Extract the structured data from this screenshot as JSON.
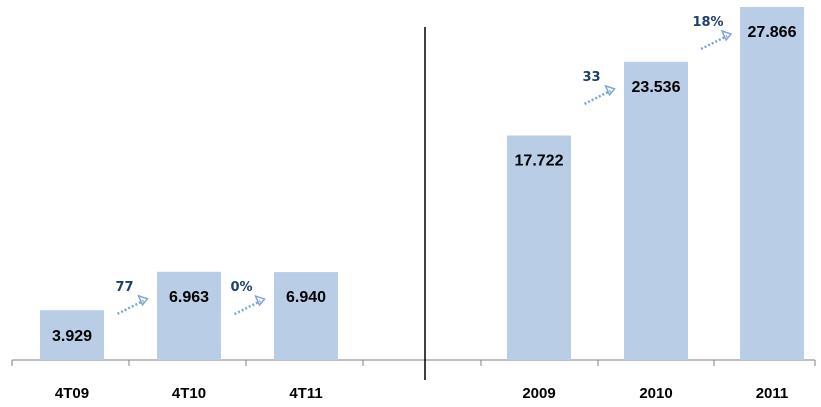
{
  "chart_data": [
    {
      "type": "bar",
      "categories": [
        "4T09",
        "4T10",
        "4T11"
      ],
      "values": [
        3.929,
        6.963,
        6.94
      ],
      "value_labels": [
        "3.929",
        "6.963",
        "6.940"
      ],
      "growth": [
        {
          "from": "4T09",
          "to": "4T10",
          "label": "77"
        },
        {
          "from": "4T10",
          "to": "4T11",
          "label": "0%"
        }
      ]
    },
    {
      "type": "bar",
      "categories": [
        "2009",
        "2010",
        "2011"
      ],
      "values": [
        17.722,
        23.536,
        27.866
      ],
      "value_labels": [
        "17.722",
        "23.536",
        "27.866"
      ],
      "growth": [
        {
          "from": "2009",
          "to": "2010",
          "label": "33"
        },
        {
          "from": "2010",
          "to": "2011",
          "label": "18%"
        }
      ]
    }
  ],
  "colors": {
    "bar": "#b9cde6",
    "axis": "#808080",
    "divider": "#000000",
    "growth_text": "#1f3f6e",
    "arrow": "#7fa6d4"
  }
}
